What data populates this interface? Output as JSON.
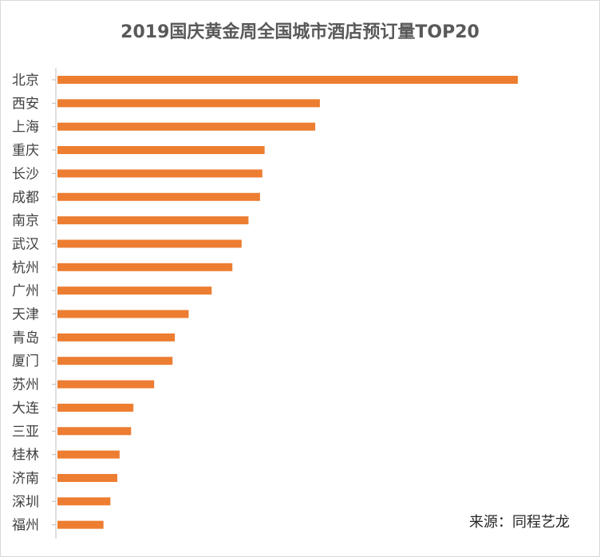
{
  "chart_data": {
    "type": "bar",
    "orientation": "horizontal",
    "title": "2019国庆黄金周全国城市酒店预订量TOP20",
    "categories": [
      "北京",
      "西安",
      "上海",
      "重庆",
      "长沙",
      "成都",
      "南京",
      "武汉",
      "杭州",
      "广州",
      "天津",
      "青岛",
      "厦门",
      "苏州",
      "大连",
      "三亚",
      "桂林",
      "济南",
      "深圳",
      "福州"
    ],
    "values": [
      100,
      57,
      56,
      45,
      44.5,
      44,
      41.5,
      40,
      38,
      33.5,
      28.5,
      25.5,
      25,
      21,
      16.5,
      16,
      13.5,
      13,
      11.5,
      10
    ],
    "xlim": [
      0,
      100
    ],
    "bar_color": "#ed7d31",
    "axis_color": "#bfbfbf",
    "grid": false,
    "legend": "none"
  },
  "source_text": "来源：同程艺龙"
}
